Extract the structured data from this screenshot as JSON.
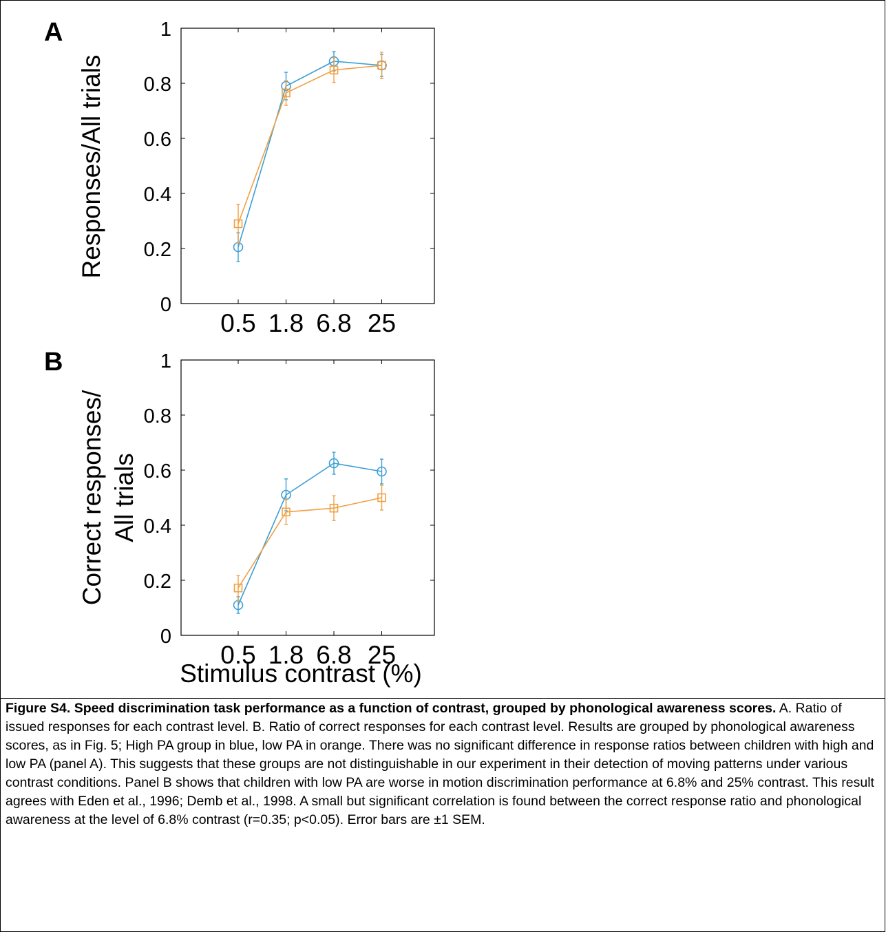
{
  "chart_data": [
    {
      "type": "line",
      "panel_label": "A",
      "ylabel": "Responses/All trials",
      "categories": [
        "0.5",
        "1.8",
        "6.8",
        "25"
      ],
      "ylim": [
        0,
        1
      ],
      "yticks": [
        "0",
        "0.2",
        "0.4",
        "0.6",
        "0.8",
        "1"
      ],
      "grid": false,
      "series": [
        {
          "color": "#3a9fd6",
          "marker": "circle",
          "values": [
            0.205,
            0.79,
            0.88,
            0.865
          ],
          "err": [
            0.052,
            0.05,
            0.035,
            0.04
          ]
        },
        {
          "color": "#f0a043",
          "marker": "square",
          "values": [
            0.29,
            0.765,
            0.848,
            0.865
          ],
          "err": [
            0.07,
            0.045,
            0.045,
            0.048
          ]
        }
      ]
    },
    {
      "type": "line",
      "panel_label": "B",
      "ylabel_lines": [
        "Correct responses/",
        "All trials"
      ],
      "xlabel": "Stimulus contrast (%)",
      "categories": [
        "0.5",
        "1.8",
        "6.8",
        "25"
      ],
      "ylim": [
        0,
        1
      ],
      "yticks": [
        "0",
        "0.2",
        "0.4",
        "0.6",
        "0.8",
        "1"
      ],
      "grid": false,
      "series": [
        {
          "color": "#3a9fd6",
          "marker": "circle",
          "values": [
            0.11,
            0.51,
            0.625,
            0.595
          ],
          "err": [
            0.03,
            0.058,
            0.04,
            0.045
          ]
        },
        {
          "color": "#f0a043",
          "marker": "square",
          "values": [
            0.172,
            0.448,
            0.462,
            0.5
          ],
          "err": [
            0.045,
            0.045,
            0.045,
            0.045
          ]
        }
      ]
    }
  ],
  "caption": {
    "title": "Figure S4. Speed discrimination task performance as a function of contrast, grouped by phonological awareness scores.",
    "body": " A. Ratio of issued responses for each contrast level. B. Ratio of correct responses for each contrast level. Results are grouped by phonological awareness scores, as in Fig. 5; High PA group in blue, low PA in orange. There was no significant difference in response ratios between children with high and low PA (panel A). This suggests that these groups are not distinguishable in our experiment in their detection of moving patterns under various contrast conditions. Panel B shows that children with low PA are worse in motion discrimination performance at 6.8% and 25% contrast. This result agrees with Eden et al., 1996; Demb et al., 1998. A small but significant correlation is found between the correct response ratio and phonological awareness at the level of 6.8% contrast (r=0.35; p<0.05). Error bars are ±1 SEM."
  }
}
